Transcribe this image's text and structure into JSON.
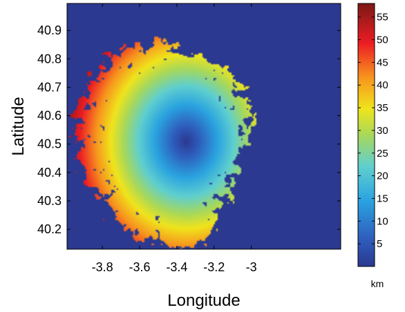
{
  "chart_data": {
    "type": "heatmap",
    "title": "",
    "xlabel": "Longitude",
    "ylabel": "Latitude",
    "xlim": [
      -3.99,
      -2.52
    ],
    "ylim": [
      40.13,
      40.995
    ],
    "xticks": [
      -3.8,
      -3.6,
      -3.4,
      -3.2,
      -3
    ],
    "xtick_labels": [
      "-3.8",
      "-3.6",
      "-3.4",
      "-3.2",
      "-3"
    ],
    "yticks": [
      40.2,
      40.3,
      40.4,
      40.5,
      40.6,
      40.7,
      40.8,
      40.9
    ],
    "ytick_labels": [
      "40.2",
      "40.3",
      "40.4",
      "40.5",
      "40.6",
      "40.7",
      "40.8",
      "40.9"
    ],
    "colormap": "jet",
    "background_color": "#2b3990",
    "center": {
      "lon": -3.35,
      "lat": 40.51
    },
    "max_value": 57,
    "colorbar": {
      "label": "km",
      "range": [
        0,
        58
      ],
      "ticks": [
        5,
        10,
        15,
        20,
        25,
        30,
        35,
        40,
        45,
        50,
        55
      ],
      "tick_labels": [
        "5",
        "10",
        "15",
        "20",
        "25",
        "30",
        "35",
        "40",
        "45",
        "50",
        "55"
      ]
    }
  }
}
